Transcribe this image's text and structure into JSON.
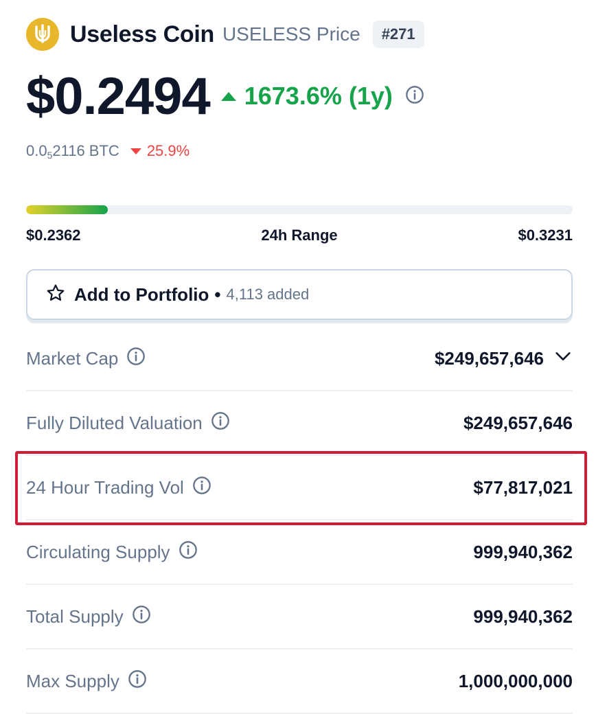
{
  "coin": {
    "name": "Useless Coin",
    "symbol": "USELESS Price",
    "rank": "#271",
    "logo_color": "#e8b62a"
  },
  "price": {
    "value": "$0.2494",
    "change": "1673.6% (1y)",
    "change_color": "#16a34a"
  },
  "btc": {
    "prefix": "0.0",
    "sub": "5",
    "suffix": "2116 BTC",
    "change": "25.9%",
    "change_color": "#ef4444"
  },
  "range": {
    "low": "$0.2362",
    "label": "24h Range",
    "high": "$0.3231",
    "fill_fraction": 0.15
  },
  "portfolio": {
    "label": "Add to Portfolio",
    "separator": "•",
    "count": "4,113 added"
  },
  "stats": {
    "market_cap": {
      "label": "Market Cap",
      "value": "$249,657,646"
    },
    "fdv": {
      "label": "Fully Diluted Valuation",
      "value": "$249,657,646"
    },
    "volume": {
      "label": "24 Hour Trading Vol",
      "value": "$77,817,021"
    },
    "circulating": {
      "label": "Circulating Supply",
      "value": "999,940,362"
    },
    "total": {
      "label": "Total Supply",
      "value": "999,940,362"
    },
    "max": {
      "label": "Max Supply",
      "value": "1,000,000,000"
    }
  },
  "icons": {
    "info": "info-icon",
    "star": "star-icon",
    "chevron": "chevron-down-icon"
  },
  "highlight_color": "#d01c37"
}
